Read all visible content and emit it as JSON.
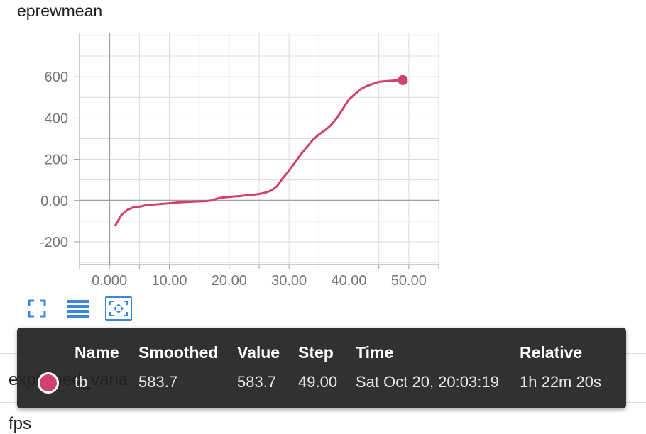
{
  "card": {
    "title": "eprewmean"
  },
  "colors": {
    "series": "#d23f72",
    "axis": "#9e9e9e",
    "grid": "#dcdcdc",
    "zero_line": "#a0a0a0",
    "toolbar_icon": "#3b86e0",
    "tooltip_bg": "#212121"
  },
  "chart_data": {
    "type": "line",
    "title": "eprewmean",
    "xlabel": "",
    "ylabel": "",
    "xlim": [
      -5,
      55
    ],
    "ylim": [
      -310,
      810
    ],
    "x_ticks": [
      0,
      10,
      20,
      30,
      40,
      50
    ],
    "x_tick_labels": [
      "0.000",
      "10.00",
      "20.00",
      "30.00",
      "40.00",
      "50.00"
    ],
    "y_ticks": [
      -200,
      0,
      200,
      400,
      600
    ],
    "y_tick_labels": [
      "-200",
      "0.00",
      "200",
      "400",
      "600"
    ],
    "grid": true,
    "series": [
      {
        "name": "tb",
        "x": [
          1,
          2,
          3,
          4,
          5,
          6,
          8,
          10,
          12,
          14,
          16,
          17,
          18,
          19,
          20,
          21,
          22,
          23,
          24,
          25,
          26,
          27,
          28,
          29,
          30,
          31,
          32,
          33,
          34,
          35,
          36,
          37,
          38,
          39,
          40,
          41,
          42,
          43,
          44,
          45,
          46,
          47,
          48,
          49
        ],
        "values": [
          -120,
          -70,
          -45,
          -33,
          -30,
          -23,
          -18,
          -13,
          -8,
          -5,
          -3,
          0,
          10,
          15,
          17,
          20,
          22,
          26,
          28,
          32,
          38,
          48,
          70,
          110,
          145,
          185,
          225,
          260,
          295,
          320,
          340,
          365,
          400,
          445,
          490,
          515,
          540,
          555,
          565,
          575,
          578,
          580,
          582,
          583.7
        ]
      }
    ],
    "highlight": {
      "x": 49,
      "y": 583.7
    }
  },
  "toolbar": {
    "buttons": [
      {
        "name": "expand",
        "icon": "fullscreen-icon"
      },
      {
        "name": "toggle-log",
        "icon": "list-lines-icon"
      },
      {
        "name": "fit-domain",
        "icon": "fit-to-data-icon"
      }
    ]
  },
  "background_cards": {
    "next_title_fragment": "explained_varia",
    "after_title_fragment": "fps"
  },
  "tooltip": {
    "headers": {
      "name": "Name",
      "smoothed": "Smoothed",
      "value": "Value",
      "step": "Step",
      "time": "Time",
      "relative": "Relative"
    },
    "row": {
      "name": "tb",
      "smoothed": "583.7",
      "value": "583.7",
      "step": "49.00",
      "time": "Sat Oct 20, 20:03:19",
      "relative": "1h 22m 20s",
      "swatch_color": "#d23f72"
    }
  }
}
